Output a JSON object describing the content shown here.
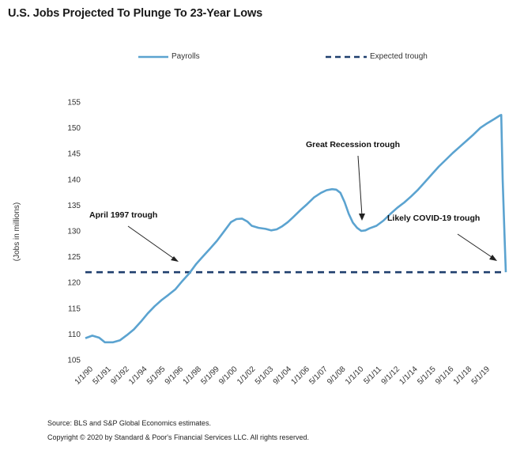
{
  "chart_data": {
    "type": "line",
    "title": "U.S. Jobs Projected To Plunge To 23-Year Lows",
    "xlabel": "",
    "ylabel": "(Jobs in millions)",
    "ylim": [
      105,
      155
    ],
    "yticks": [
      105,
      110,
      115,
      120,
      125,
      130,
      135,
      140,
      145,
      150,
      155
    ],
    "x_tick_labels": [
      "1/1/90",
      "5/1/91",
      "9/1/92",
      "1/1/94",
      "5/1/95",
      "9/1/96",
      "1/1/98",
      "5/1/99",
      "9/1/00",
      "1/1/02",
      "5/1/03",
      "9/1/04",
      "1/1/06",
      "5/1/07",
      "9/1/08",
      "1/1/10",
      "5/1/11",
      "9/1/12",
      "1/1/14",
      "5/1/15",
      "9/1/16",
      "1/1/18",
      "5/1/19"
    ],
    "x_range_years": [
      1990.0,
      2020.33
    ],
    "series": [
      {
        "name": "Payrolls",
        "color": "#5ba3d0",
        "x": [
          1990.0,
          1990.5,
          1991.0,
          1991.4,
          1992.0,
          1992.5,
          1993.0,
          1993.5,
          1994.0,
          1994.5,
          1995.0,
          1995.5,
          1996.0,
          1996.5,
          1997.0,
          1997.5,
          1998.0,
          1998.5,
          1999.0,
          1999.5,
          2000.0,
          2000.5,
          2000.9,
          2001.3,
          2001.7,
          2002.0,
          2002.5,
          2003.0,
          2003.4,
          2003.8,
          2004.2,
          2004.6,
          2005.0,
          2005.5,
          2006.0,
          2006.5,
          2007.0,
          2007.4,
          2007.8,
          2008.1,
          2008.4,
          2008.7,
          2009.0,
          2009.3,
          2009.6,
          2009.9,
          2010.2,
          2010.5,
          2011.0,
          2011.5,
          2012.0,
          2012.5,
          2013.0,
          2013.5,
          2014.0,
          2014.5,
          2015.0,
          2015.5,
          2016.0,
          2016.5,
          2017.0,
          2017.5,
          2018.0,
          2018.5,
          2019.0,
          2019.5,
          2019.9,
          2020.0,
          2020.1,
          2020.25,
          2020.33
        ],
        "values": [
          109.2,
          109.7,
          109.3,
          108.4,
          108.4,
          108.8,
          109.8,
          110.9,
          112.4,
          114.0,
          115.4,
          116.6,
          117.6,
          118.7,
          120.3,
          121.8,
          123.6,
          125.1,
          126.6,
          128.1,
          129.9,
          131.7,
          132.3,
          132.4,
          131.8,
          131.0,
          130.6,
          130.4,
          130.1,
          130.3,
          130.9,
          131.7,
          132.7,
          134.0,
          135.2,
          136.5,
          137.4,
          137.9,
          138.1,
          138.0,
          137.4,
          135.6,
          133.3,
          131.6,
          130.6,
          130.0,
          130.1,
          130.5,
          131.0,
          132.0,
          133.3,
          134.5,
          135.5,
          136.7,
          138.0,
          139.5,
          141.0,
          142.5,
          143.8,
          145.1,
          146.3,
          147.5,
          148.7,
          150.0,
          150.9,
          151.7,
          152.4,
          152.5,
          140.0,
          128.0,
          122.0
        ]
      },
      {
        "name": "Expected trough",
        "color": "#1f3f6e",
        "style": "dashed",
        "value": 122
      }
    ],
    "annotations": [
      {
        "text": "April 1997 trough"
      },
      {
        "text": "Great Recession trough"
      },
      {
        "text": "Likely COVID-19 trough"
      }
    ],
    "legend_position": "top-center"
  },
  "footer": {
    "source": "Source: BLS and S&P Global Economics estimates.",
    "copyright": "Copyright © 2020 by Standard & Poor's Financial Services LLC. All rights reserved."
  }
}
